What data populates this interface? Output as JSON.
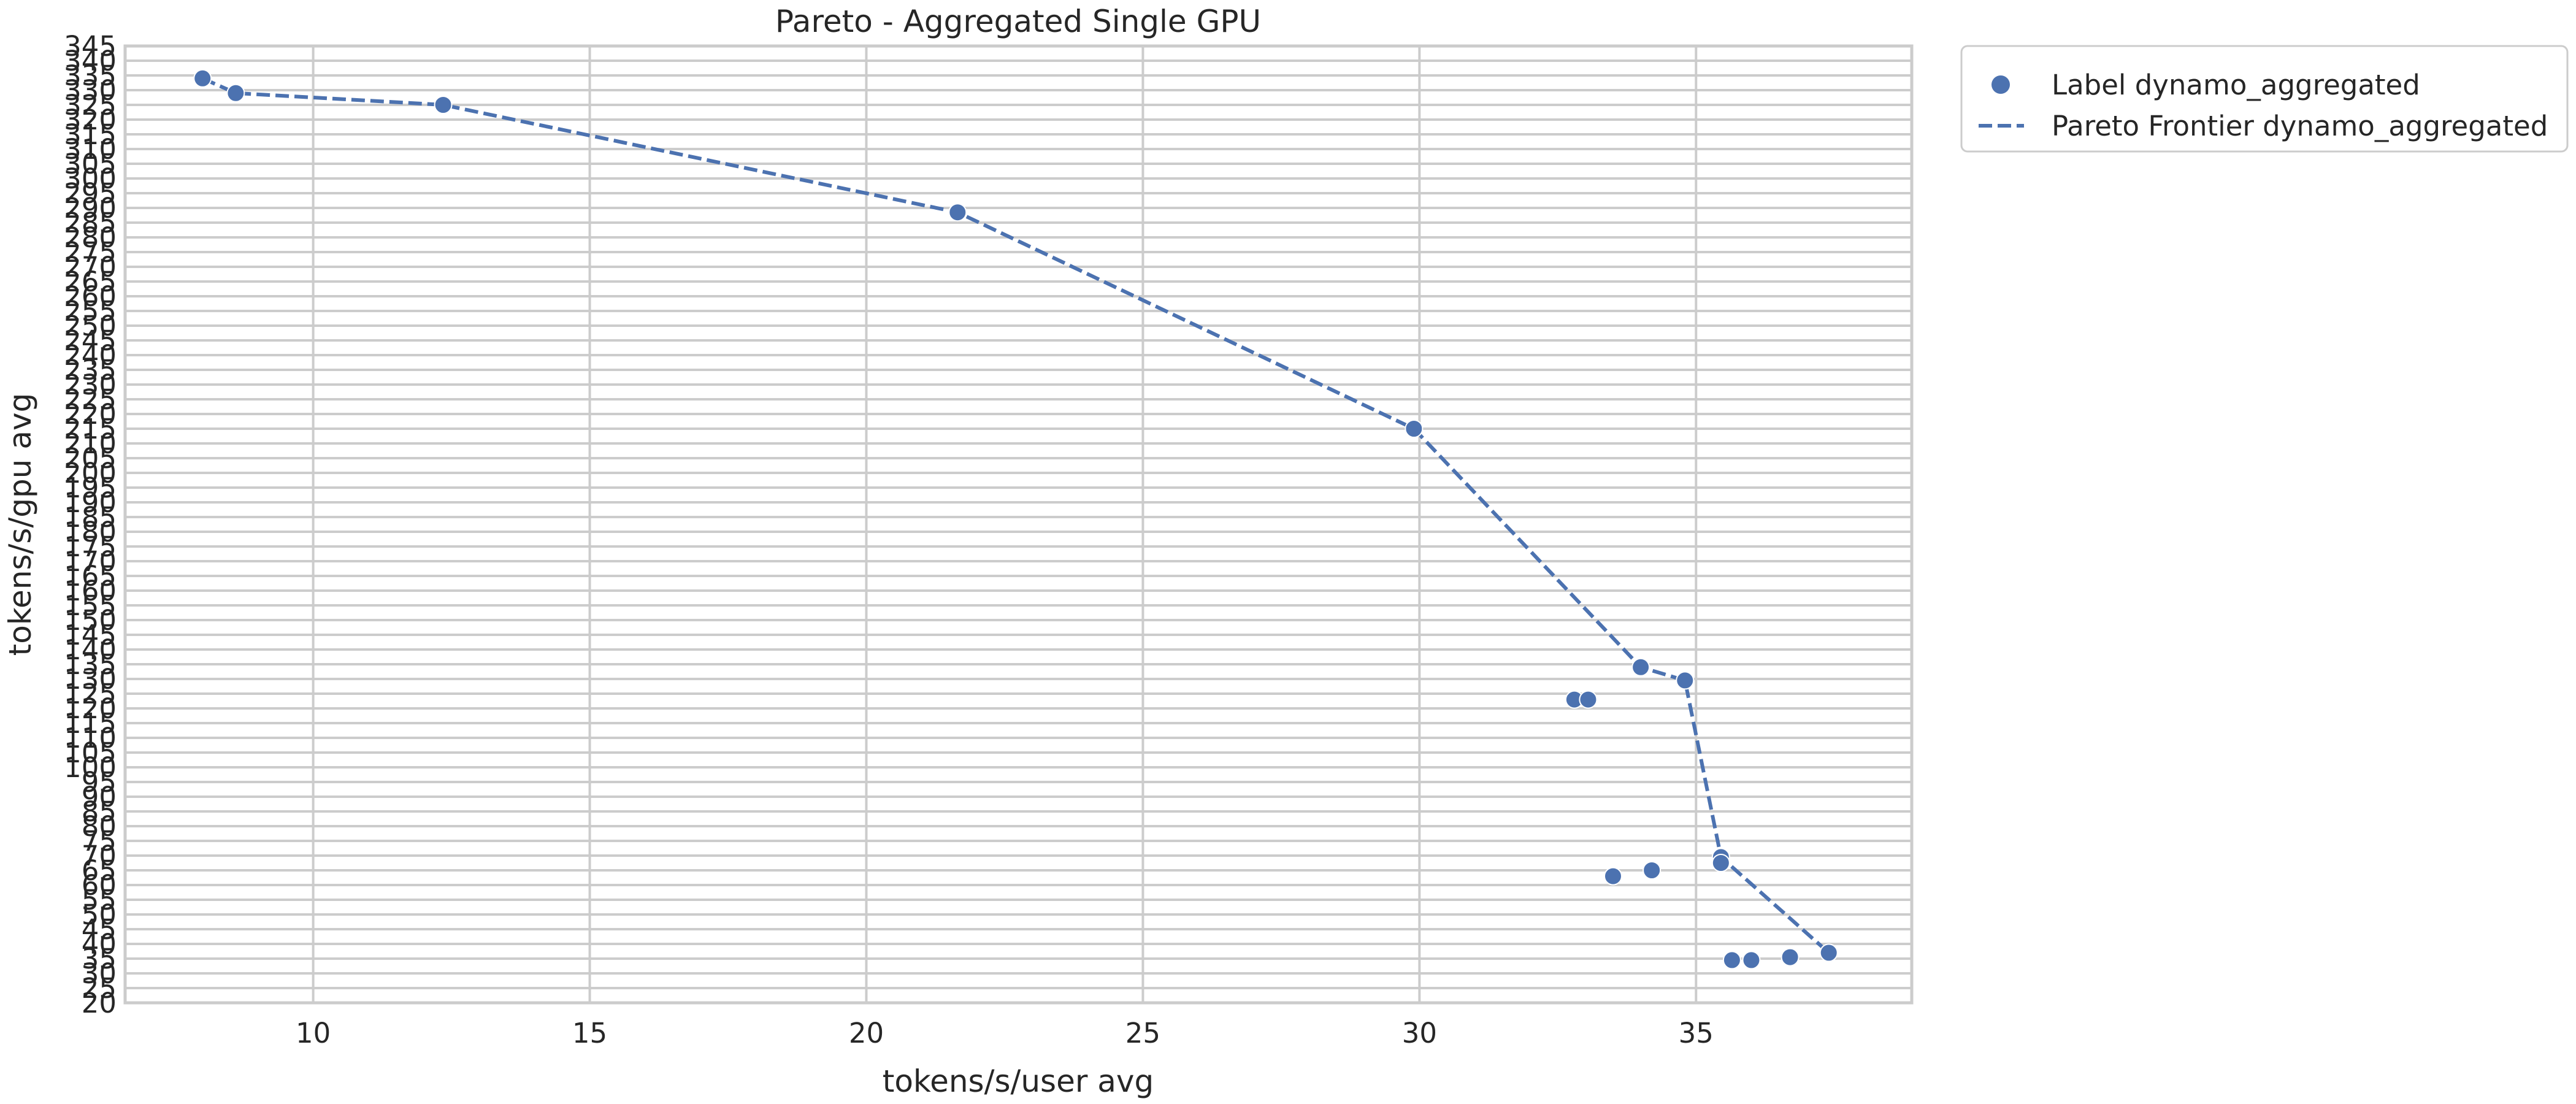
{
  "chart_data": {
    "type": "scatter",
    "title": "Pareto - Aggregated Single GPU",
    "xlabel": "tokens/s/user avg",
    "ylabel": "tokens/s/gpu avg",
    "xlim": [
      6.6,
      38.9
    ],
    "ylim": [
      20,
      345
    ],
    "x_ticks": [
      10,
      15,
      20,
      25,
      30,
      35
    ],
    "y_ticks": [
      20,
      25,
      30,
      35,
      40,
      45,
      50,
      55,
      60,
      65,
      70,
      75,
      80,
      85,
      90,
      95,
      100,
      105,
      110,
      115,
      120,
      125,
      130,
      135,
      140,
      145,
      150,
      155,
      160,
      165,
      170,
      175,
      180,
      185,
      190,
      195,
      200,
      205,
      210,
      215,
      220,
      225,
      230,
      235,
      240,
      245,
      250,
      255,
      260,
      265,
      270,
      275,
      280,
      285,
      290,
      295,
      300,
      305,
      310,
      315,
      320,
      325,
      330,
      335,
      340,
      345
    ],
    "grid": true,
    "legend_position": "outside-top-right",
    "colors": {
      "series": "#4c72b0",
      "grid": "#cccccc",
      "frame": "#cccccc"
    },
    "series": [
      {
        "name": "Label dynamo_aggregated",
        "kind": "scatter",
        "points": [
          {
            "x": 8.0,
            "y": 334
          },
          {
            "x": 8.6,
            "y": 329
          },
          {
            "x": 12.35,
            "y": 325
          },
          {
            "x": 21.65,
            "y": 288.5
          },
          {
            "x": 29.9,
            "y": 215
          },
          {
            "x": 34.0,
            "y": 134
          },
          {
            "x": 34.8,
            "y": 129.5
          },
          {
            "x": 32.8,
            "y": 123
          },
          {
            "x": 33.05,
            "y": 123
          },
          {
            "x": 35.45,
            "y": 69.5
          },
          {
            "x": 35.45,
            "y": 67.5
          },
          {
            "x": 33.5,
            "y": 63
          },
          {
            "x": 34.2,
            "y": 65
          },
          {
            "x": 35.65,
            "y": 34.5
          },
          {
            "x": 36.0,
            "y": 34.5
          },
          {
            "x": 36.7,
            "y": 35.5
          },
          {
            "x": 37.4,
            "y": 37
          }
        ]
      },
      {
        "name": "Pareto Frontier dynamo_aggregated",
        "kind": "line",
        "style": "dashed",
        "points": [
          {
            "x": 8.0,
            "y": 334
          },
          {
            "x": 8.6,
            "y": 329
          },
          {
            "x": 12.35,
            "y": 325
          },
          {
            "x": 21.65,
            "y": 288.5
          },
          {
            "x": 29.9,
            "y": 215
          },
          {
            "x": 34.0,
            "y": 134
          },
          {
            "x": 34.8,
            "y": 129.5
          },
          {
            "x": 35.45,
            "y": 69.5
          },
          {
            "x": 37.4,
            "y": 37
          }
        ]
      }
    ]
  }
}
